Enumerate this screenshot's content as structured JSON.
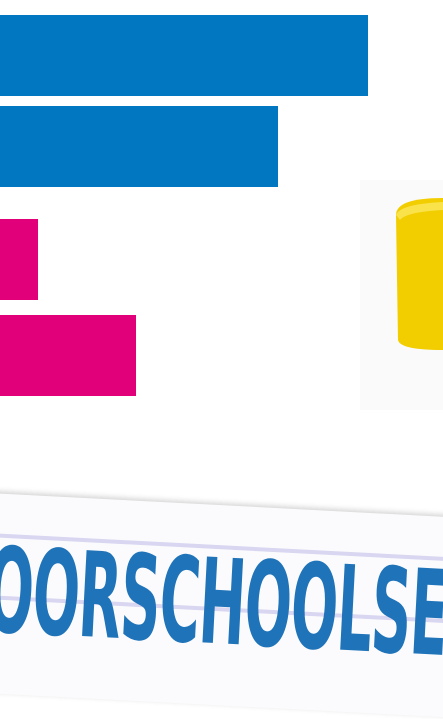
{
  "heading": "OORSCHOOLSE"
}
